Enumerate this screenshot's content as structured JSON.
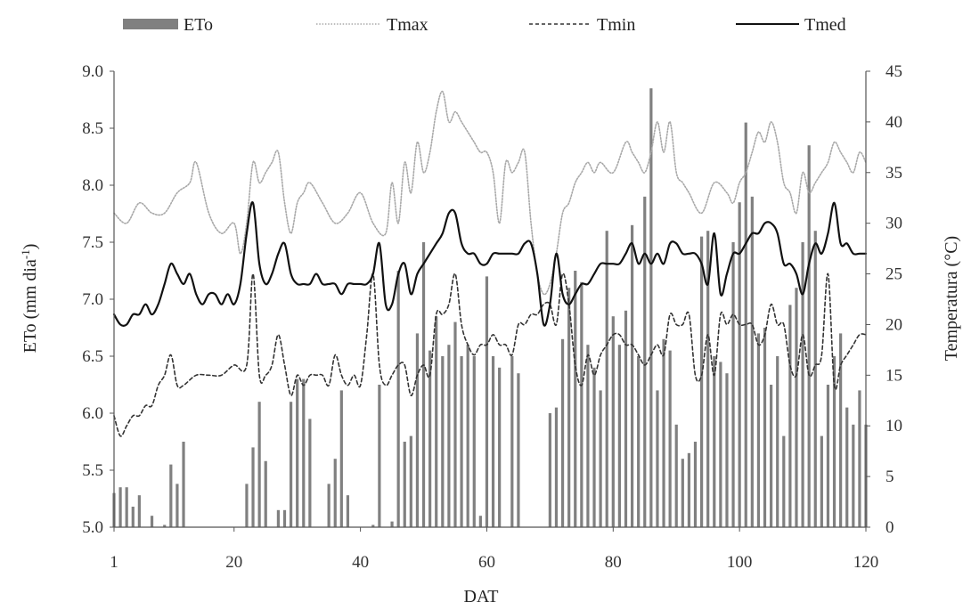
{
  "chart_data": {
    "type": "bar",
    "xlabel": "DAT",
    "ylabel_left": "ETo (mm dia",
    "ylabel_left_sup": "-1",
    "ylabel_left_tail": ")",
    "ylabel_right": "Temperatura (°C)",
    "x_range": [
      1,
      120
    ],
    "x_ticks": [
      1,
      20,
      40,
      60,
      80,
      100,
      120
    ],
    "ylim_left": [
      5.0,
      9.0
    ],
    "y_ticks_left": [
      "5.0",
      "5.5",
      "6.0",
      "6.5",
      "7.0",
      "7.5",
      "8.0",
      "8.5",
      "9.0"
    ],
    "ylim_right": [
      0,
      45
    ],
    "y_ticks_right": [
      "0",
      "5",
      "10",
      "15",
      "20",
      "25",
      "30",
      "35",
      "40",
      "45"
    ],
    "grid": false,
    "legend_position": "top",
    "legend": [
      "ETo",
      "Tmax",
      "Tmin",
      "Tmed"
    ],
    "colors": {
      "eto": "#808080",
      "tmax": "#a8a8a8",
      "tmin": "#333333",
      "tmed": "#111111"
    },
    "eto": {
      "name": "ETo",
      "axis": "left",
      "x": [
        1,
        2,
        3,
        4,
        5,
        6,
        7,
        8,
        9,
        10,
        11,
        12,
        13,
        14,
        15,
        16,
        17,
        18,
        19,
        20,
        21,
        22,
        23,
        24,
        25,
        26,
        27,
        28,
        29,
        30,
        31,
        32,
        33,
        34,
        35,
        36,
        37,
        38,
        39,
        40,
        41,
        42,
        43,
        44,
        45,
        46,
        47,
        48,
        49,
        50,
        51,
        52,
        53,
        54,
        55,
        56,
        57,
        58,
        59,
        60,
        61,
        62,
        63,
        64,
        65,
        66,
        67,
        68,
        69,
        70,
        71,
        72,
        73,
        74,
        75,
        76,
        77,
        78,
        79,
        80,
        81,
        82,
        83,
        84,
        85,
        86,
        87,
        88,
        89,
        90,
        91,
        92,
        93,
        94,
        95,
        96,
        97,
        98,
        99,
        100,
        101,
        102,
        103,
        104,
        105,
        106,
        107,
        108,
        109,
        110,
        111,
        112,
        113,
        114,
        115,
        116,
        117,
        118,
        119,
        120
      ],
      "values": [
        5.3,
        5.35,
        5.35,
        5.18,
        5.28,
        5.0,
        5.1,
        5.0,
        5.02,
        5.55,
        5.38,
        5.75,
        5.0,
        5.0,
        5.0,
        5.0,
        5.0,
        5.0,
        5.0,
        5.0,
        5.0,
        5.38,
        5.7,
        6.1,
        5.58,
        5.0,
        5.15,
        5.15,
        6.1,
        6.3,
        6.3,
        5.95,
        5.0,
        5.0,
        5.38,
        5.6,
        6.2,
        5.28,
        5.0,
        5.0,
        5.0,
        5.02,
        6.25,
        5.0,
        5.05,
        7.25,
        5.75,
        5.8,
        6.7,
        7.5,
        6.55,
        6.85,
        6.5,
        6.6,
        6.8,
        6.5,
        6.6,
        6.5,
        5.1,
        7.2,
        6.5,
        6.4,
        5.0,
        6.5,
        6.35,
        5.0,
        5.0,
        5.0,
        5.0,
        6.0,
        6.05,
        6.65,
        7.1,
        7.25,
        7.15,
        6.6,
        6.4,
        6.2,
        7.6,
        6.85,
        6.6,
        6.9,
        7.65,
        6.5,
        7.9,
        8.85,
        6.2,
        6.65,
        6.55,
        5.9,
        5.6,
        5.65,
        5.75,
        7.55,
        7.6,
        6.5,
        6.45,
        6.35,
        7.5,
        7.85,
        8.55,
        7.9,
        6.7,
        6.75,
        6.25,
        6.5,
        5.8,
        6.95,
        7.1,
        7.5,
        8.35,
        7.6,
        5.8,
        6.25,
        6.5,
        6.7,
        6.05,
        5.9,
        6.2,
        5.9
      ]
    },
    "series": [
      {
        "name": "Tmax",
        "axis": "right",
        "x": [
          1,
          3,
          5,
          7,
          9,
          11,
          13,
          14,
          16,
          18,
          20,
          21,
          22,
          23,
          24,
          25,
          26,
          27,
          28,
          29,
          30,
          31,
          32,
          34,
          36,
          38,
          40,
          42,
          44,
          45,
          46,
          47,
          48,
          49,
          50,
          51,
          52,
          53,
          54,
          55,
          56,
          57,
          58,
          59,
          60,
          61,
          62,
          63,
          64,
          65,
          66,
          67,
          68,
          69,
          70,
          71,
          72,
          73,
          74,
          75,
          76,
          77,
          78,
          80,
          82,
          83,
          84,
          85,
          86,
          87,
          88,
          89,
          90,
          91,
          92,
          94,
          96,
          98,
          99,
          100,
          101,
          102,
          103,
          104,
          105,
          106,
          107,
          108,
          109,
          110,
          111,
          112,
          113,
          114,
          115,
          116,
          117,
          118,
          119,
          120
        ],
        "values": [
          31,
          30,
          32,
          31,
          31,
          33,
          34,
          36,
          31,
          29,
          30,
          27,
          30,
          36,
          34,
          35,
          36,
          37,
          32,
          29,
          32,
          33,
          34,
          32,
          30,
          31,
          33,
          30,
          29,
          34,
          30,
          36,
          33,
          38,
          35,
          37,
          41,
          43,
          40,
          41,
          40,
          39,
          38,
          37,
          37,
          35,
          30,
          36,
          35,
          36,
          37,
          30,
          25,
          23,
          24,
          27,
          31,
          32,
          34,
          35,
          36,
          35,
          36,
          35,
          38,
          37,
          36,
          35,
          37,
          40,
          37,
          40,
          35,
          34,
          33,
          31,
          34,
          33,
          32,
          34,
          35,
          37,
          39,
          38,
          40,
          38,
          34,
          33,
          31,
          35,
          33,
          34,
          35,
          36,
          38,
          37,
          36,
          35,
          37,
          36
        ]
      },
      {
        "name": "Tmin",
        "axis": "right",
        "x": [
          1,
          2,
          3,
          4,
          5,
          6,
          7,
          8,
          9,
          10,
          11,
          12,
          14,
          16,
          18,
          20,
          22,
          23,
          24,
          25,
          26,
          27,
          28,
          29,
          30,
          31,
          32,
          33,
          34,
          35,
          36,
          37,
          38,
          39,
          40,
          41,
          42,
          43,
          44,
          45,
          46,
          47,
          48,
          49,
          50,
          51,
          52,
          53,
          54,
          55,
          56,
          57,
          58,
          59,
          60,
          61,
          62,
          63,
          64,
          65,
          66,
          67,
          68,
          69,
          70,
          71,
          72,
          73,
          74,
          75,
          76,
          77,
          78,
          79,
          80,
          81,
          82,
          83,
          84,
          85,
          86,
          87,
          88,
          89,
          90,
          91,
          92,
          93,
          94,
          95,
          96,
          97,
          98,
          99,
          100,
          101,
          102,
          103,
          104,
          105,
          106,
          107,
          108,
          109,
          110,
          111,
          112,
          113,
          114,
          115,
          116,
          117,
          118,
          119,
          120
        ],
        "values": [
          11,
          9,
          10,
          11,
          11,
          12,
          12,
          14,
          15,
          17,
          14,
          14,
          15,
          15,
          15,
          16,
          16,
          25,
          15,
          15,
          16,
          19,
          16,
          13,
          15,
          14,
          15,
          15,
          15,
          14,
          17,
          15,
          14,
          15,
          14,
          19,
          25,
          16,
          14,
          15,
          16,
          16,
          13,
          15,
          16,
          15,
          21,
          21,
          22,
          25,
          20,
          18,
          17,
          18,
          18,
          19,
          18,
          18,
          17,
          20,
          20,
          21,
          21,
          22,
          22,
          20,
          25,
          22,
          16,
          14,
          17,
          15,
          17,
          18,
          19,
          19,
          18,
          18,
          17,
          16,
          17,
          18,
          17,
          21,
          20,
          20,
          21,
          15,
          15,
          19,
          15,
          21,
          20,
          21,
          20,
          20,
          20,
          18,
          19,
          22,
          20,
          20,
          16,
          15,
          19,
          15,
          16,
          17,
          25,
          14,
          16,
          17,
          18,
          19,
          19
        ]
      },
      {
        "name": "Tmed",
        "axis": "right",
        "x": [
          1,
          2,
          3,
          4,
          5,
          6,
          7,
          8,
          9,
          10,
          11,
          12,
          13,
          14,
          15,
          16,
          17,
          18,
          19,
          20,
          21,
          22,
          23,
          24,
          25,
          26,
          27,
          28,
          29,
          30,
          31,
          32,
          33,
          34,
          35,
          36,
          37,
          38,
          39,
          40,
          41,
          42,
          43,
          44,
          45,
          46,
          47,
          48,
          49,
          50,
          51,
          52,
          53,
          54,
          55,
          56,
          57,
          58,
          59,
          60,
          61,
          62,
          63,
          64,
          65,
          66,
          67,
          68,
          69,
          70,
          71,
          72,
          73,
          74,
          75,
          76,
          77,
          78,
          79,
          80,
          81,
          82,
          83,
          84,
          85,
          86,
          87,
          88,
          89,
          90,
          91,
          92,
          93,
          94,
          95,
          96,
          97,
          98,
          99,
          100,
          101,
          102,
          103,
          104,
          105,
          106,
          107,
          108,
          109,
          110,
          111,
          112,
          113,
          114,
          115,
          116,
          117,
          118,
          119,
          120
        ],
        "values": [
          21,
          20,
          20,
          21,
          21,
          22,
          21,
          22,
          24,
          26,
          25,
          24,
          25,
          23,
          22,
          23,
          23,
          22,
          23,
          22,
          24,
          29,
          32,
          26,
          24,
          25,
          27,
          28,
          25,
          24,
          24,
          24,
          25,
          24,
          24,
          24,
          23,
          24,
          24,
          24,
          24,
          25,
          28,
          22,
          22,
          25,
          26,
          23,
          25,
          26,
          27,
          28,
          29,
          31,
          31,
          28,
          27,
          27,
          26,
          26,
          27,
          27,
          27,
          27,
          27,
          28,
          28,
          25,
          20,
          22,
          27,
          23,
          22,
          23,
          24,
          24,
          25,
          26,
          26,
          26,
          26,
          27,
          28,
          26,
          27,
          26,
          27,
          26,
          28,
          28,
          27,
          27,
          27,
          26,
          24,
          29,
          23,
          25,
          27,
          27,
          28,
          29,
          29,
          30,
          30,
          29,
          26,
          26,
          25,
          23,
          26,
          28,
          27,
          29,
          32,
          28,
          28,
          27,
          27,
          27
        ]
      }
    ]
  }
}
